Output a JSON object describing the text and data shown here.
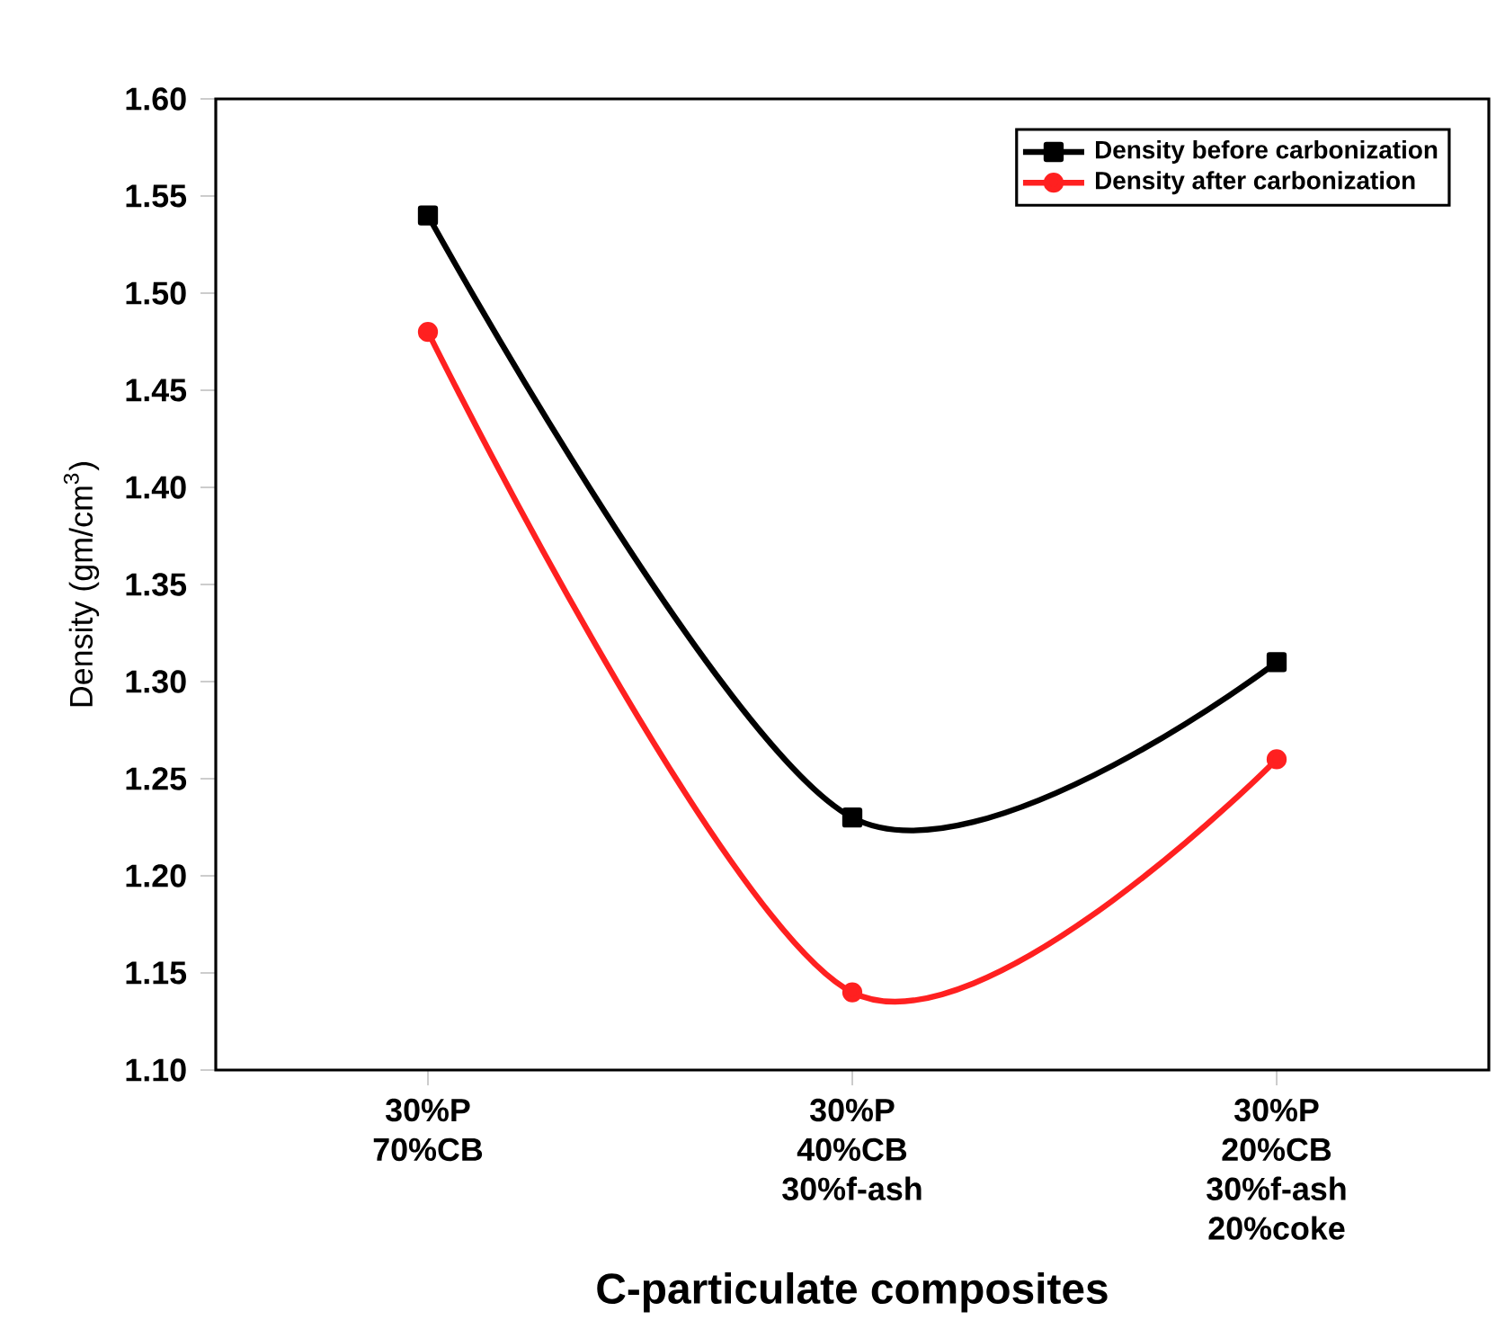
{
  "chart_data": {
    "type": "line",
    "xlabel": "C-particulate composites",
    "ylabel": "Density (gm/cm$^{3}$)",
    "categories": [
      "30%P 70%CB",
      "30%P 40%CB 30%f-ash",
      "30%P 20%CB 30%f-ash 20%coke"
    ],
    "series": [
      {
        "name": "Density before carbonization",
        "color": "#000000",
        "marker": "square",
        "values": [
          1.54,
          1.23,
          1.31
        ]
      },
      {
        "name": "Density after carbonization",
        "color": "#ff2020",
        "marker": "circle",
        "values": [
          1.48,
          1.14,
          1.26
        ]
      }
    ],
    "ylim": [
      1.1,
      1.6
    ],
    "yticks": [
      {
        "value": 1.1,
        "label": "1.10"
      },
      {
        "value": 1.15,
        "label": "1.15"
      },
      {
        "value": 1.2,
        "label": "1.20"
      },
      {
        "value": 1.25,
        "label": "1.25"
      },
      {
        "value": 1.3,
        "label": "1.30"
      },
      {
        "value": 1.35,
        "label": "1.35"
      },
      {
        "value": 1.4,
        "label": "1.40"
      },
      {
        "value": 1.45,
        "label": "1.45"
      },
      {
        "value": 1.5,
        "label": "1.50"
      },
      {
        "value": 1.55,
        "label": "1.55"
      },
      {
        "value": 1.6,
        "label": "1.60"
      }
    ],
    "legend": "top right",
    "grid": false,
    "line_style": "solid"
  }
}
